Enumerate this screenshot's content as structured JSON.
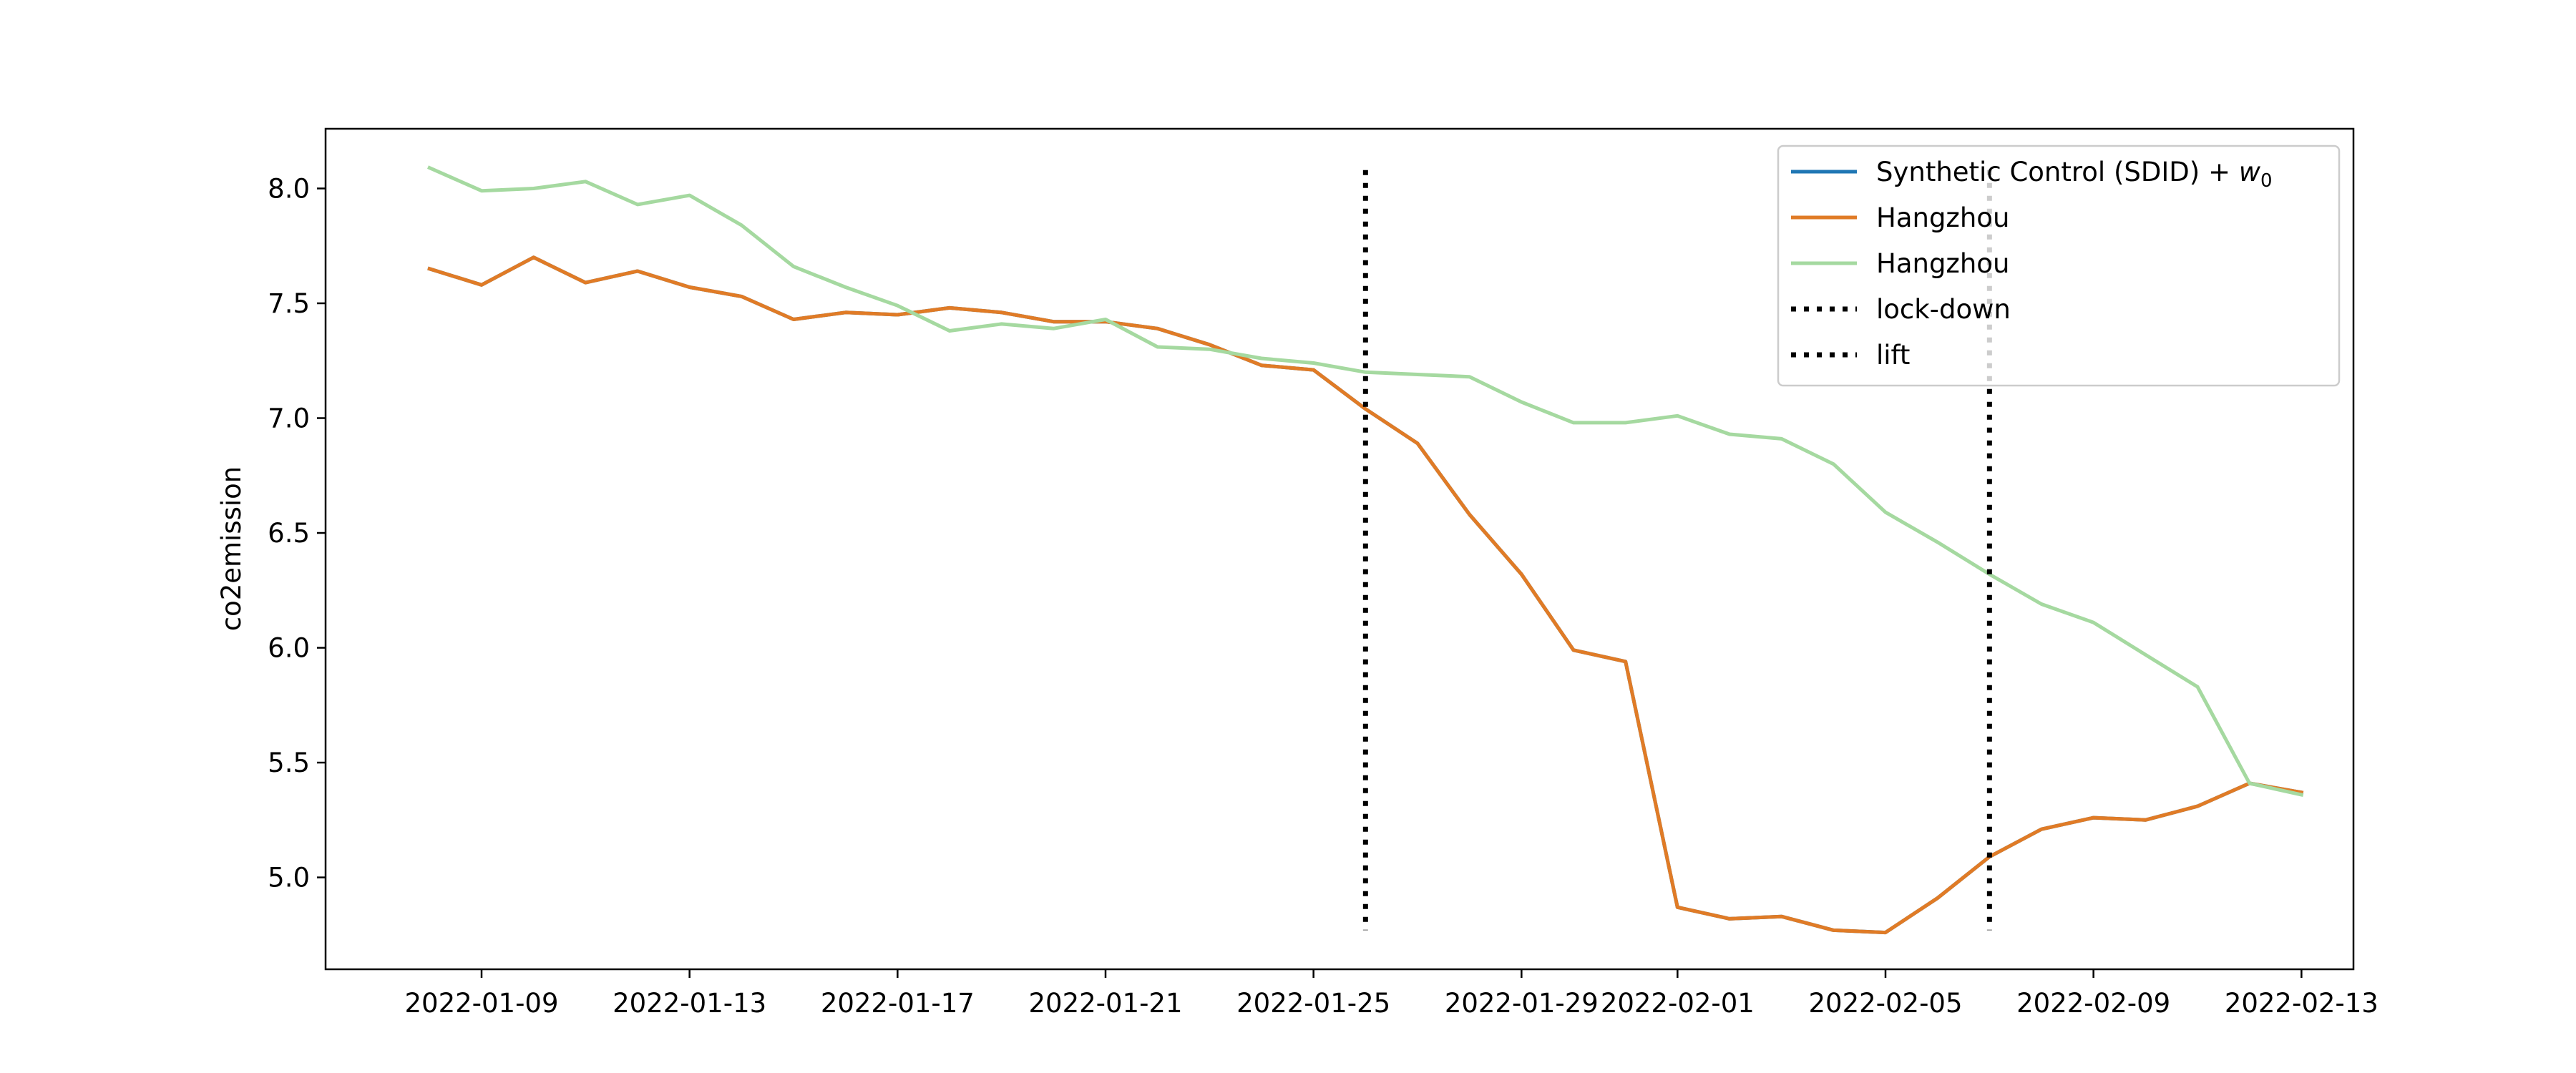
{
  "chart_data": {
    "type": "line",
    "title": "",
    "xlabel": "",
    "ylabel": "co2emission",
    "x": [
      "2022-01-08",
      "2022-01-09",
      "2022-01-10",
      "2022-01-11",
      "2022-01-12",
      "2022-01-13",
      "2022-01-14",
      "2022-01-15",
      "2022-01-16",
      "2022-01-17",
      "2022-01-18",
      "2022-01-19",
      "2022-01-20",
      "2022-01-21",
      "2022-01-22",
      "2022-01-23",
      "2022-01-24",
      "2022-01-25",
      "2022-01-26",
      "2022-01-27",
      "2022-01-28",
      "2022-01-29",
      "2022-01-30",
      "2022-01-31",
      "2022-02-01",
      "2022-02-02",
      "2022-02-03",
      "2022-02-04",
      "2022-02-05",
      "2022-02-06",
      "2022-02-07",
      "2022-02-08",
      "2022-02-09",
      "2022-02-10",
      "2022-02-11",
      "2022-02-12",
      "2022-02-13"
    ],
    "xticks": [
      "2022-01-09",
      "2022-01-13",
      "2022-01-17",
      "2022-01-21",
      "2022-01-25",
      "2022-01-29",
      "2022-02-01",
      "2022-02-05",
      "2022-02-09",
      "2022-02-13"
    ],
    "yticks": [
      "5.0",
      "5.5",
      "6.0",
      "6.5",
      "7.0",
      "7.5",
      "8.0"
    ],
    "ylim": [
      4.6,
      8.26
    ],
    "xlim": [
      "2022-01-06",
      "2022-02-14"
    ],
    "grid": false,
    "legend_position": "top-right",
    "series": [
      {
        "name": "Synthetic Control (SDID) + w0",
        "color": "#1f77b4",
        "values": [
          7.65,
          7.58,
          7.7,
          7.59,
          7.64,
          7.57,
          7.53,
          7.43,
          7.46,
          7.45,
          7.48,
          7.46,
          7.42,
          7.42,
          7.39,
          7.32,
          7.23,
          7.21,
          7.04,
          6.89,
          6.58,
          6.32,
          5.99,
          5.94,
          4.87,
          4.82,
          4.83,
          4.77,
          4.76,
          4.91,
          5.09,
          5.21,
          5.26,
          5.25,
          5.31,
          5.41,
          5.37
        ]
      },
      {
        "name": "Hangzhou",
        "color": "#e07b26",
        "values": [
          7.65,
          7.58,
          7.7,
          7.59,
          7.64,
          7.57,
          7.53,
          7.43,
          7.46,
          7.45,
          7.48,
          7.46,
          7.42,
          7.42,
          7.39,
          7.32,
          7.23,
          7.21,
          7.04,
          6.89,
          6.58,
          6.32,
          5.99,
          5.94,
          4.87,
          4.82,
          4.83,
          4.77,
          4.76,
          4.91,
          5.09,
          5.21,
          5.26,
          5.25,
          5.31,
          5.41,
          5.37
        ]
      },
      {
        "name": "Hangzhou",
        "color": "#a5d9a0",
        "values": [
          8.09,
          7.99,
          8.0,
          8.03,
          7.93,
          7.97,
          7.84,
          7.66,
          7.57,
          7.49,
          7.38,
          7.41,
          7.39,
          7.43,
          7.31,
          7.3,
          7.26,
          7.24,
          7.2,
          7.19,
          7.18,
          7.07,
          6.98,
          6.98,
          7.01,
          6.93,
          6.91,
          6.8,
          6.59,
          6.46,
          6.32,
          6.19,
          6.11,
          5.97,
          5.83,
          5.41,
          5.36
        ]
      }
    ],
    "vlines": [
      {
        "name": "lock-down",
        "x": "2022-01-26",
        "ymin": 4.77,
        "ymax": 8.08,
        "style": "dotted",
        "color": "#000000"
      },
      {
        "name": "lift",
        "x": "2022-02-07",
        "ymin": 4.77,
        "ymax": 8.08,
        "style": "dotted",
        "color": "#000000"
      }
    ]
  },
  "legend": {
    "items": [
      {
        "label": "Synthetic Control (SDID) + ",
        "math": "w",
        "sub": "0",
        "color": "#1f77b4",
        "style": "solid"
      },
      {
        "label": "Hangzhou",
        "color": "#e07b26",
        "style": "solid"
      },
      {
        "label": "Hangzhou",
        "color": "#a5d9a0",
        "style": "solid"
      },
      {
        "label": "lock-down",
        "color": "#000000",
        "style": "dotted"
      },
      {
        "label": "lift",
        "color": "#000000",
        "style": "dotted"
      }
    ]
  }
}
